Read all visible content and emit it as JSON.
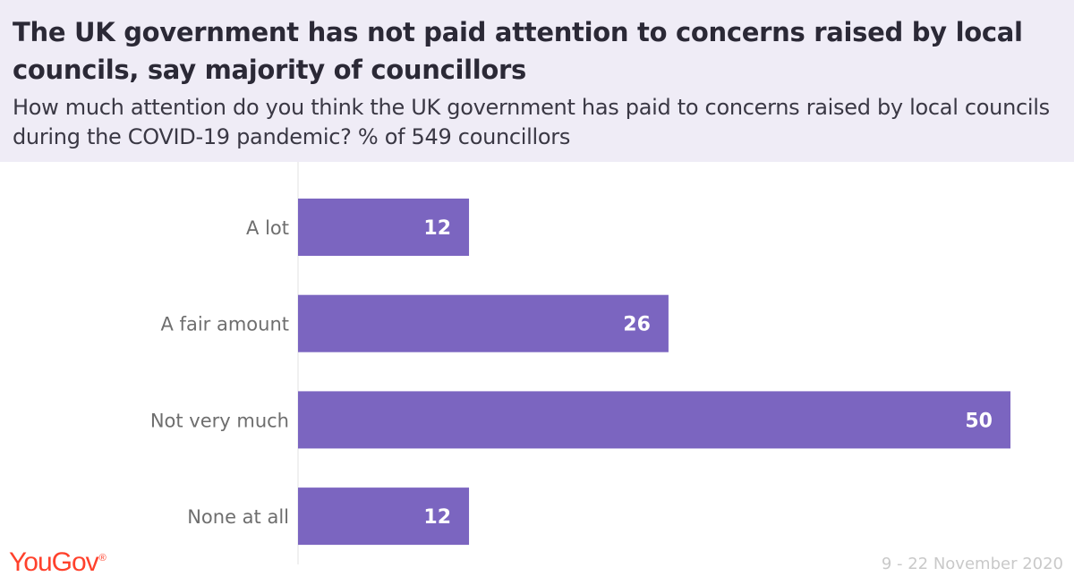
{
  "header": {
    "title": "The UK government has not paid attention to concerns raised by local councils, say majority of councillors",
    "subtitle": "How much attention do you think the UK government has paid to concerns raised by local councils during the COVID-19 pandemic? % of 549 councillors"
  },
  "footer": {
    "logo": "YouGov",
    "logo_mark": "®",
    "date": "9 - 22 November 2020"
  },
  "colors": {
    "bar": "#7b65c0",
    "header_bg": "#efecf6",
    "logo": "#ff412c"
  },
  "chart_data": {
    "type": "bar",
    "orientation": "horizontal",
    "categories": [
      "A lot",
      "A fair amount",
      "Not very much",
      "None at all"
    ],
    "values": [
      12,
      26,
      50,
      12
    ],
    "xlim": [
      0,
      50
    ],
    "grid": false
  }
}
